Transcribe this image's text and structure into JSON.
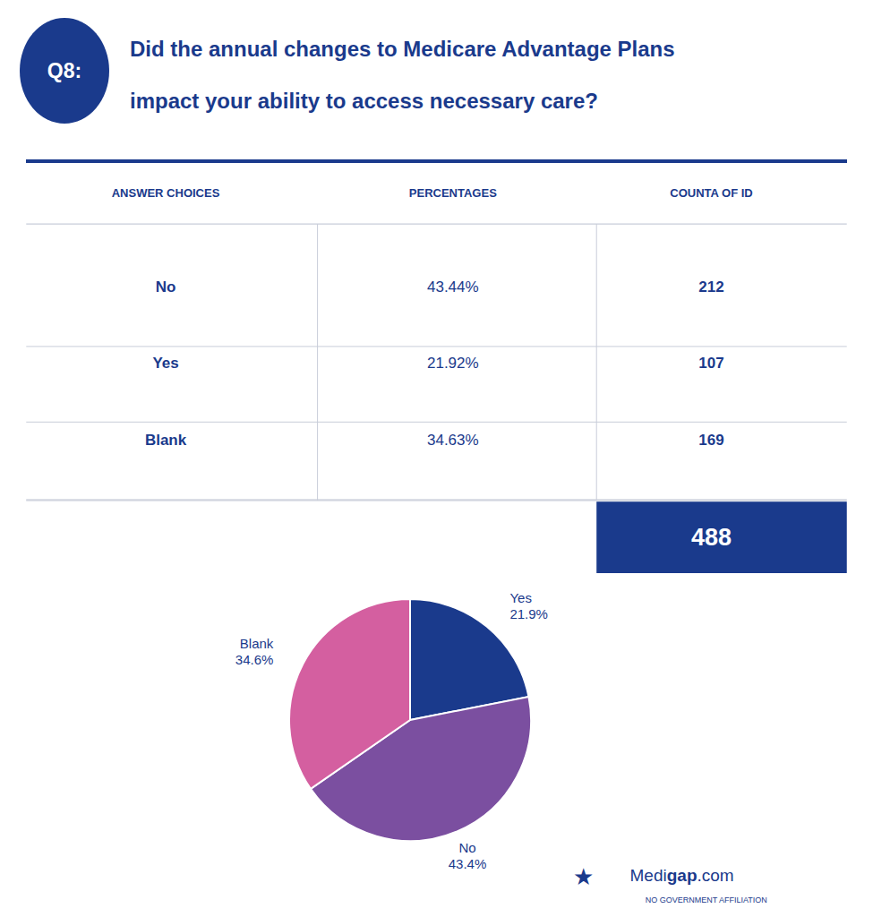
{
  "chart_data": [
    {
      "type": "table",
      "title": [
        "Did the annual changes to Medicare Advantage Plans",
        "impact your ability to access necessary care?"
      ],
      "annotations": [
        "Q8:",
        "★",
        "Medi",
        "gap",
        ".com",
        "NO GOVERNMENT AFFILIATION"
      ],
      "columns": [
        "ANSWER CHOICES",
        "PERCENTAGES",
        "COUNTA OF ID"
      ],
      "categories": [
        "No",
        "Yes",
        "Blank"
      ],
      "values": [
        43.44,
        21.92,
        34.63
      ],
      "value_labels": [
        "43.44%",
        "21.92%",
        "34.63%"
      ],
      "counts": [
        212,
        107,
        169
      ],
      "total": 488,
      "color": "#1a3a8c"
    },
    {
      "type": "pie",
      "categories": [
        "Yes",
        "No",
        "Blank"
      ],
      "values": [
        21.92,
        43.44,
        34.63
      ],
      "value_labels": [
        "21.9%",
        "43.4%",
        "34.6%"
      ],
      "colors": [
        "#1a3a8c",
        "#7b4fa0",
        "#d45fa0"
      ],
      "data_labels": true
    }
  ]
}
